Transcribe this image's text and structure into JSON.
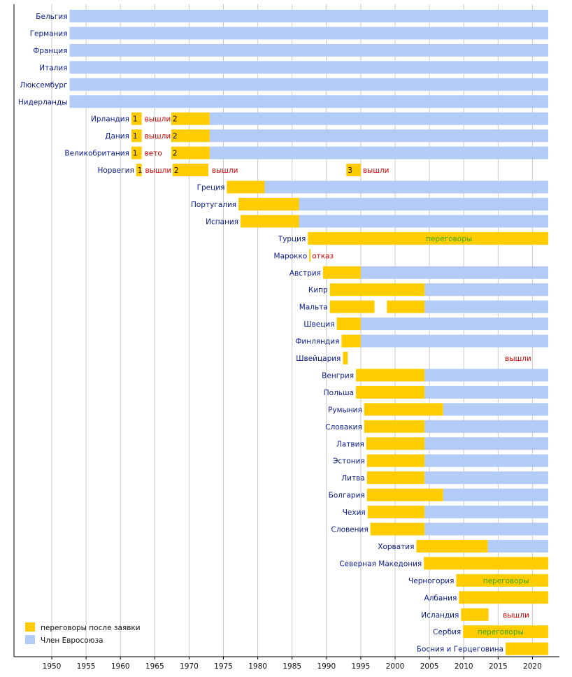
{
  "chart_data": {
    "type": "bar",
    "title": "",
    "xlim": [
      1944.5,
      2022.3
    ],
    "xticks": [
      1950,
      1955,
      1960,
      1965,
      1970,
      1975,
      1980,
      1985,
      1990,
      1995,
      2000,
      2005,
      2010,
      2015,
      2020
    ],
    "colors": {
      "candidate": "#ffcc00",
      "member": "#b3cbf7",
      "axis": "#000000",
      "grid": "#c8c8c8"
    },
    "legend": {
      "placement": "bottom-left",
      "items": [
        {
          "key": "candidate",
          "label": "переговоры после заявки"
        },
        {
          "key": "member",
          "label": "Член Евросоюза"
        }
      ]
    },
    "rows": [
      {
        "name": "Бельгия",
        "bars": [
          {
            "type": "member",
            "start": 1952.6,
            "end": 2022.3
          }
        ],
        "notes": []
      },
      {
        "name": "Германия",
        "bars": [
          {
            "type": "member",
            "start": 1952.6,
            "end": 2022.3
          }
        ],
        "notes": []
      },
      {
        "name": "Франция",
        "bars": [
          {
            "type": "member",
            "start": 1952.6,
            "end": 2022.3
          }
        ],
        "notes": []
      },
      {
        "name": "Италия",
        "bars": [
          {
            "type": "member",
            "start": 1952.6,
            "end": 2022.3
          }
        ],
        "notes": []
      },
      {
        "name": "Люксембург",
        "bars": [
          {
            "type": "member",
            "start": 1952.6,
            "end": 2022.3
          }
        ],
        "notes": []
      },
      {
        "name": "Нидерланды",
        "bars": [
          {
            "type": "member",
            "start": 1952.6,
            "end": 2022.3
          }
        ],
        "notes": []
      },
      {
        "name": "Ирландия",
        "bars": [
          {
            "type": "candidate",
            "start": 1961.6,
            "end": 1963.1,
            "label": "1"
          },
          {
            "type": "candidate",
            "start": 1967.4,
            "end": 1973.0,
            "label": "2"
          },
          {
            "type": "member",
            "start": 1973.0,
            "end": 2022.3
          }
        ],
        "notes": [
          {
            "text": "вышли",
            "x": 1963.5,
            "color": "red"
          }
        ]
      },
      {
        "name": "Дания",
        "bars": [
          {
            "type": "candidate",
            "start": 1961.6,
            "end": 1963.1,
            "label": "1"
          },
          {
            "type": "candidate",
            "start": 1967.4,
            "end": 1973.0,
            "label": "2"
          },
          {
            "type": "member",
            "start": 1973.0,
            "end": 2022.3
          }
        ],
        "notes": [
          {
            "text": "вышли",
            "x": 1963.5,
            "color": "red"
          }
        ]
      },
      {
        "name": "Великобритания",
        "bars": [
          {
            "type": "candidate",
            "start": 1961.6,
            "end": 1963.1,
            "label": "1"
          },
          {
            "type": "candidate",
            "start": 1967.4,
            "end": 1973.0,
            "label": "2"
          },
          {
            "type": "member",
            "start": 1973.0,
            "end": 2022.3
          }
        ],
        "notes": [
          {
            "text": "вето",
            "x": 1963.5,
            "color": "red"
          }
        ]
      },
      {
        "name": "Норвегия",
        "bars": [
          {
            "type": "candidate",
            "start": 1962.3,
            "end": 1963.1,
            "label": "1"
          },
          {
            "type": "candidate",
            "start": 1967.6,
            "end": 1972.8,
            "label": "2"
          },
          {
            "type": "candidate",
            "start": 1992.9,
            "end": 1995.0,
            "label": "3"
          }
        ],
        "notes": [
          {
            "text": "вышли",
            "x": 1963.6,
            "color": "red"
          },
          {
            "text": "вышли",
            "x": 1973.3,
            "color": "red"
          },
          {
            "text": "вышли",
            "x": 1995.3,
            "color": "red"
          }
        ]
      },
      {
        "name": "Греция",
        "bars": [
          {
            "type": "candidate",
            "start": 1975.5,
            "end": 1981.0
          },
          {
            "type": "member",
            "start": 1981.0,
            "end": 2022.3
          }
        ],
        "notes": []
      },
      {
        "name": "Португалия",
        "bars": [
          {
            "type": "candidate",
            "start": 1977.2,
            "end": 1986.0
          },
          {
            "type": "member",
            "start": 1986.0,
            "end": 2022.3
          }
        ],
        "notes": []
      },
      {
        "name": "Испания",
        "bars": [
          {
            "type": "candidate",
            "start": 1977.5,
            "end": 1986.0
          },
          {
            "type": "member",
            "start": 1986.0,
            "end": 2022.3
          }
        ],
        "notes": []
      },
      {
        "name": "Турция",
        "bars": [
          {
            "type": "candidate",
            "start": 1987.3,
            "end": 2022.3
          }
        ],
        "notes": [
          {
            "text": "переговоры",
            "x": 2004.5,
            "color": "green"
          }
        ]
      },
      {
        "name": "Марокко",
        "bars": [
          {
            "type": "candidate",
            "start": 1987.5,
            "end": 1987.7
          }
        ],
        "notes": [
          {
            "text": "отказ",
            "x": 1987.9,
            "color": "red"
          }
        ]
      },
      {
        "name": "Австрия",
        "bars": [
          {
            "type": "candidate",
            "start": 1989.5,
            "end": 1995.0
          },
          {
            "type": "member",
            "start": 1995.0,
            "end": 2022.3
          }
        ],
        "notes": []
      },
      {
        "name": "Кипр",
        "bars": [
          {
            "type": "candidate",
            "start": 1990.5,
            "end": 2004.3
          },
          {
            "type": "member",
            "start": 2004.3,
            "end": 2022.3
          }
        ],
        "notes": []
      },
      {
        "name": "Мальта",
        "bars": [
          {
            "type": "candidate",
            "start": 1990.5,
            "end": 1997.0
          },
          {
            "type": "candidate",
            "start": 1998.8,
            "end": 2004.3
          },
          {
            "type": "member",
            "start": 2004.3,
            "end": 2022.3
          }
        ],
        "notes": []
      },
      {
        "name": "Швеция",
        "bars": [
          {
            "type": "candidate",
            "start": 1991.5,
            "end": 1995.0
          },
          {
            "type": "member",
            "start": 1995.0,
            "end": 2022.3
          }
        ],
        "notes": []
      },
      {
        "name": "Финляндия",
        "bars": [
          {
            "type": "candidate",
            "start": 1992.2,
            "end": 1995.0
          },
          {
            "type": "member",
            "start": 1995.0,
            "end": 2022.3
          }
        ],
        "notes": []
      },
      {
        "name": "Швейцария",
        "bars": [
          {
            "type": "candidate",
            "start": 1992.4,
            "end": 1993.1
          }
        ],
        "notes": [
          {
            "text": "вышли",
            "x": 2016.0,
            "color": "red"
          }
        ]
      },
      {
        "name": "Венгрия",
        "bars": [
          {
            "type": "candidate",
            "start": 1994.3,
            "end": 2004.3
          },
          {
            "type": "member",
            "start": 2004.3,
            "end": 2022.3
          }
        ],
        "notes": []
      },
      {
        "name": "Польша",
        "bars": [
          {
            "type": "candidate",
            "start": 1994.3,
            "end": 2004.3
          },
          {
            "type": "member",
            "start": 2004.3,
            "end": 2022.3
          }
        ],
        "notes": []
      },
      {
        "name": "Румыния",
        "bars": [
          {
            "type": "candidate",
            "start": 1995.5,
            "end": 2007.0
          },
          {
            "type": "member",
            "start": 2007.0,
            "end": 2022.3
          }
        ],
        "notes": []
      },
      {
        "name": "Словакия",
        "bars": [
          {
            "type": "candidate",
            "start": 1995.5,
            "end": 2004.3
          },
          {
            "type": "member",
            "start": 2004.3,
            "end": 2022.3
          }
        ],
        "notes": []
      },
      {
        "name": "Латвия",
        "bars": [
          {
            "type": "candidate",
            "start": 1995.8,
            "end": 2004.3
          },
          {
            "type": "member",
            "start": 2004.3,
            "end": 2022.3
          }
        ],
        "notes": []
      },
      {
        "name": "Эстония",
        "bars": [
          {
            "type": "candidate",
            "start": 1995.9,
            "end": 2004.3
          },
          {
            "type": "member",
            "start": 2004.3,
            "end": 2022.3
          }
        ],
        "notes": []
      },
      {
        "name": "Литва",
        "bars": [
          {
            "type": "candidate",
            "start": 1995.9,
            "end": 2004.3
          },
          {
            "type": "member",
            "start": 2004.3,
            "end": 2022.3
          }
        ],
        "notes": []
      },
      {
        "name": "Болгария",
        "bars": [
          {
            "type": "candidate",
            "start": 1995.9,
            "end": 2007.0
          },
          {
            "type": "member",
            "start": 2007.0,
            "end": 2022.3
          }
        ],
        "notes": []
      },
      {
        "name": "Чехия",
        "bars": [
          {
            "type": "candidate",
            "start": 1996.0,
            "end": 2004.3
          },
          {
            "type": "member",
            "start": 2004.3,
            "end": 2022.3
          }
        ],
        "notes": []
      },
      {
        "name": "Словения",
        "bars": [
          {
            "type": "candidate",
            "start": 1996.4,
            "end": 2004.3
          },
          {
            "type": "member",
            "start": 2004.3,
            "end": 2022.3
          }
        ],
        "notes": []
      },
      {
        "name": "Хорватия",
        "bars": [
          {
            "type": "candidate",
            "start": 2003.1,
            "end": 2013.5
          },
          {
            "type": "member",
            "start": 2013.5,
            "end": 2022.3
          }
        ],
        "notes": []
      },
      {
        "name": "Северная Македония",
        "bars": [
          {
            "type": "candidate",
            "start": 2004.2,
            "end": 2022.3
          }
        ],
        "notes": []
      },
      {
        "name": "Черногория",
        "bars": [
          {
            "type": "candidate",
            "start": 2008.9,
            "end": 2022.3
          }
        ],
        "notes": [
          {
            "text": "переговоры",
            "x": 2012.8,
            "color": "green"
          }
        ]
      },
      {
        "name": "Албания",
        "bars": [
          {
            "type": "candidate",
            "start": 2009.3,
            "end": 2022.3
          }
        ],
        "notes": []
      },
      {
        "name": "Исландия",
        "bars": [
          {
            "type": "candidate",
            "start": 2009.6,
            "end": 2013.6
          }
        ],
        "notes": [
          {
            "text": "вышли",
            "x": 2015.7,
            "color": "red"
          }
        ]
      },
      {
        "name": "Сербия",
        "bars": [
          {
            "type": "candidate",
            "start": 2009.9,
            "end": 2022.3
          }
        ],
        "notes": [
          {
            "text": "переговоры",
            "x": 2012.0,
            "color": "green"
          }
        ]
      },
      {
        "name": "Босния и Герцеговина",
        "bars": [
          {
            "type": "candidate",
            "start": 2016.1,
            "end": 2022.3
          }
        ],
        "notes": []
      }
    ]
  }
}
